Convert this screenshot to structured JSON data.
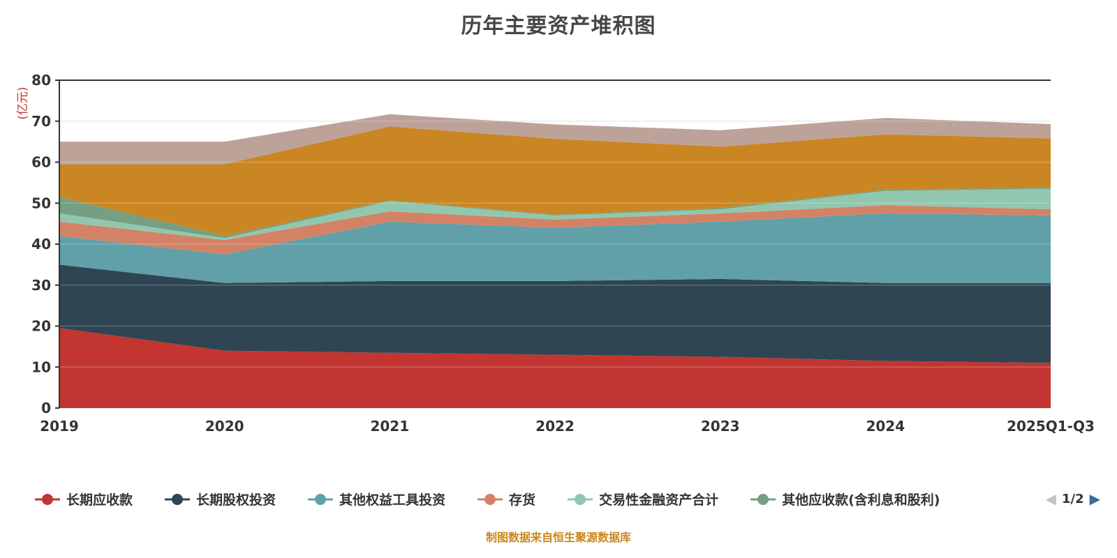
{
  "title": "历年主要资产堆积图",
  "footer": "制图数据来自恒生聚源数据库",
  "chart_data": {
    "type": "area",
    "stacked": true,
    "title": "历年主要资产堆积图",
    "xlabel": "",
    "ylabel": "(亿元)",
    "ylim": [
      0,
      80
    ],
    "yticks": [
      0,
      10,
      20,
      30,
      40,
      50,
      60,
      70,
      80
    ],
    "grid": true,
    "legend_position": "bottom",
    "categories": [
      "2019",
      "2020",
      "2021",
      "2022",
      "2023",
      "2024",
      "2025Q1-Q3"
    ],
    "series": [
      {
        "name": "长期应收款",
        "color": "#c23531",
        "values": [
          19.5,
          14.0,
          13.5,
          13.0,
          12.5,
          11.5,
          11.0
        ]
      },
      {
        "name": "长期股权投资",
        "color": "#2f4554",
        "values": [
          15.5,
          16.5,
          17.5,
          18.0,
          19.0,
          19.0,
          19.5
        ]
      },
      {
        "name": "其他权益工具投资",
        "color": "#61a0a8",
        "values": [
          7.0,
          7.0,
          14.5,
          13.0,
          14.0,
          17.0,
          16.5
        ]
      },
      {
        "name": "存货",
        "color": "#d48265",
        "values": [
          3.5,
          3.5,
          2.5,
          2.0,
          2.0,
          2.0,
          1.5
        ]
      },
      {
        "name": "交易性金融资产合计",
        "color": "#91c7ae",
        "values": [
          2.0,
          0.5,
          2.5,
          1.0,
          1.0,
          3.5,
          5.0
        ]
      },
      {
        "name": "其他应收款(含利息和股利)",
        "color": "#749f83",
        "values": [
          4.0,
          0.5,
          0.2,
          0.2,
          0.3,
          0.3,
          0.3
        ]
      },
      {
        "name": "",
        "color": "#ca8622",
        "values": [
          8.0,
          17.5,
          18.0,
          18.5,
          15.0,
          13.5,
          12.0
        ]
      },
      {
        "name": "",
        "color": "#bda29a",
        "values": [
          5.5,
          5.5,
          3.0,
          3.5,
          4.0,
          4.0,
          3.5
        ]
      }
    ]
  },
  "legend": {
    "items": [
      {
        "label": "长期应收款",
        "color": "#c23531"
      },
      {
        "label": "长期股权投资",
        "color": "#2f4554"
      },
      {
        "label": "其他权益工具投资",
        "color": "#61a0a8"
      },
      {
        "label": "存货",
        "color": "#d48265"
      },
      {
        "label": "交易性金融资产合计",
        "color": "#91c7ae"
      },
      {
        "label": "其他应收款(含利息和股利)",
        "color": "#749f83"
      }
    ],
    "pager": {
      "text": "1/2",
      "prev_icon": "◀",
      "next_icon": "▶"
    }
  }
}
